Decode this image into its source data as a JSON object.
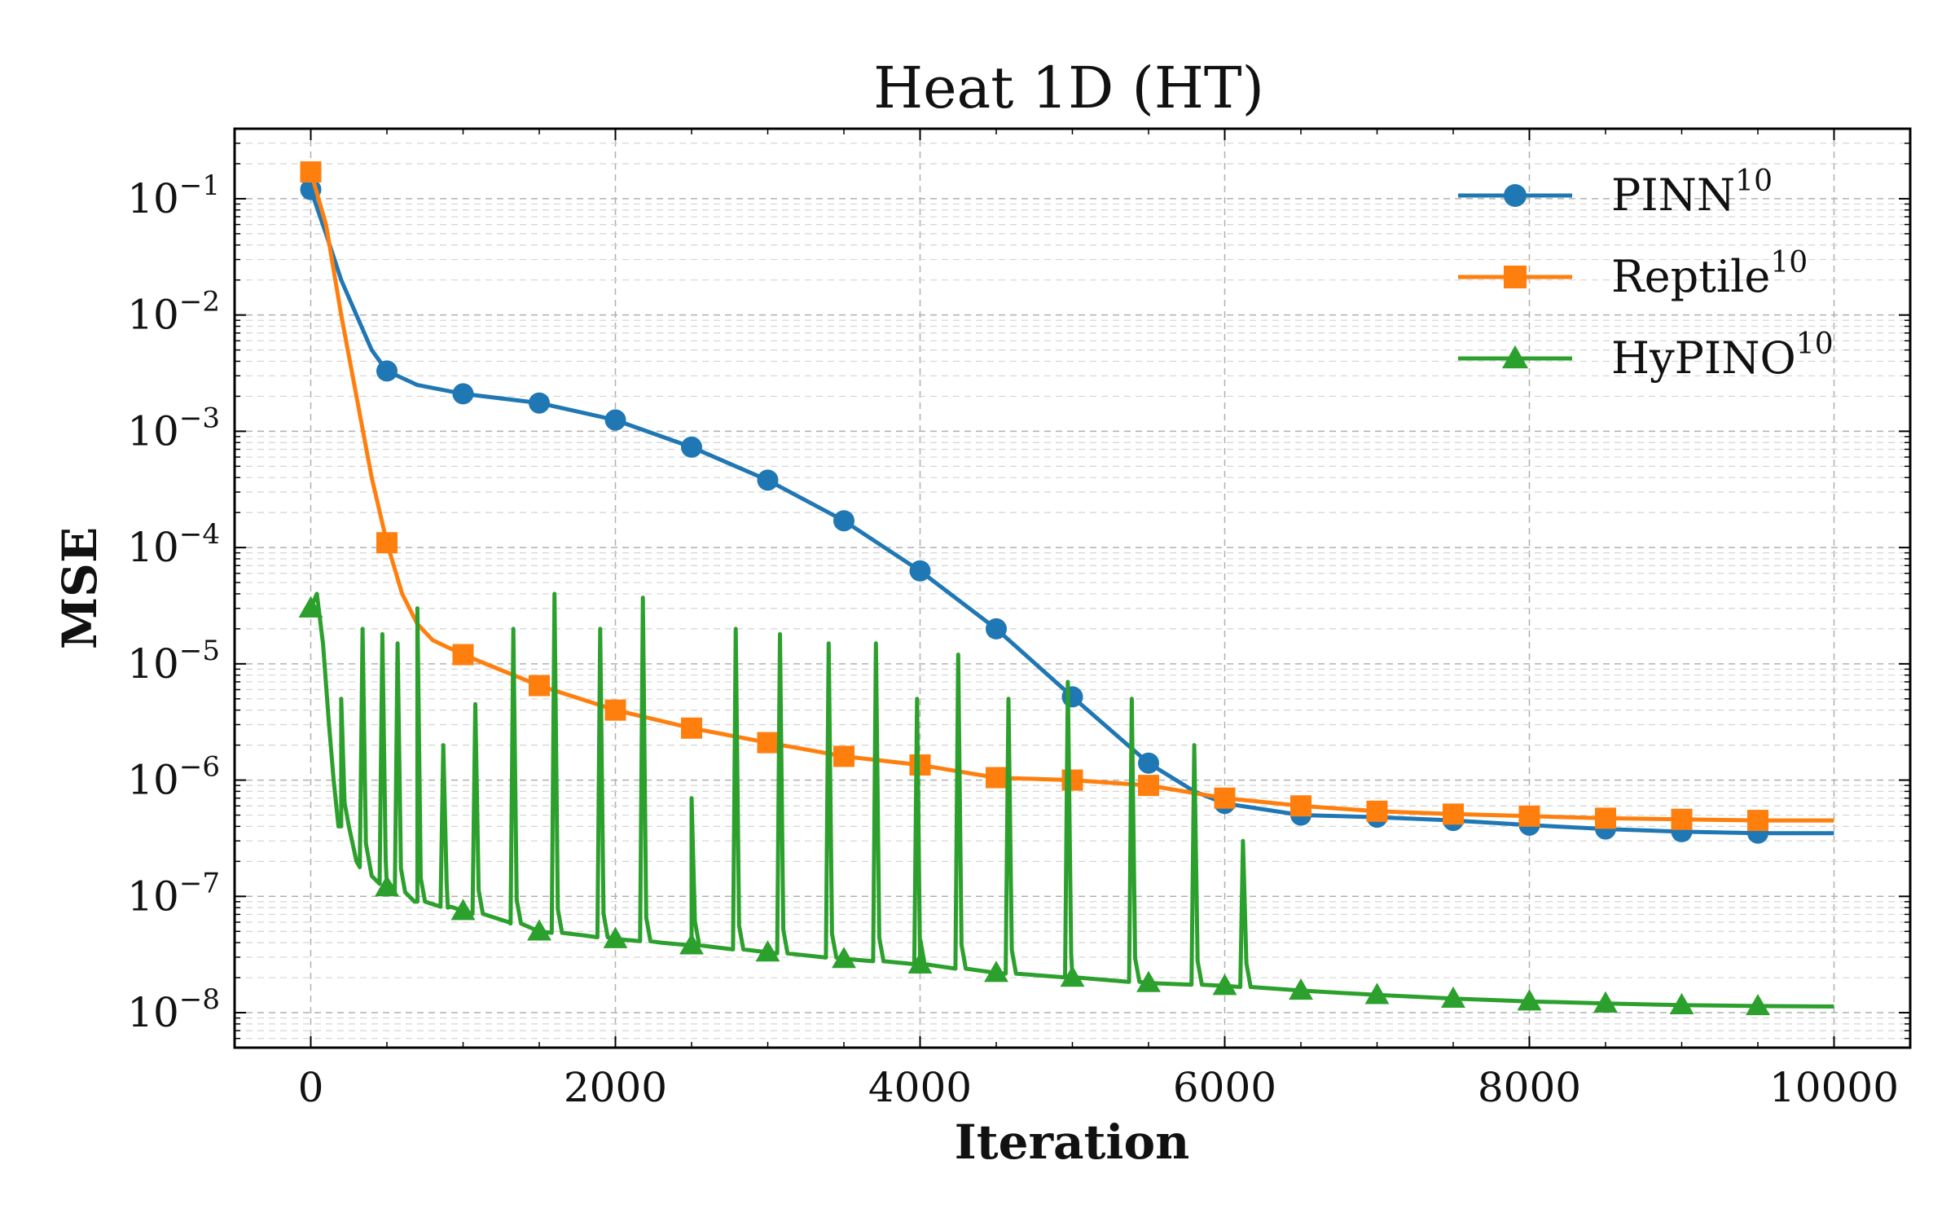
{
  "chart_data": {
    "type": "line",
    "title": "Heat 1D (HT)",
    "xlabel": "Iteration",
    "ylabel": "MSE",
    "y_scale": "log",
    "xlim": [
      -500,
      10500
    ],
    "ylim": [
      5e-09,
      0.4
    ],
    "x_ticks": [
      0,
      2000,
      4000,
      6000,
      8000,
      10000
    ],
    "x_tick_labels": [
      "0",
      "2000",
      "4000",
      "6000",
      "8000",
      "10000"
    ],
    "y_ticks": [
      1e-08,
      1e-07,
      1e-06,
      1e-05,
      0.0001,
      0.001,
      0.01,
      0.1
    ],
    "y_tick_labels": [
      {
        "base": "10",
        "exp": "−8"
      },
      {
        "base": "10",
        "exp": "−7"
      },
      {
        "base": "10",
        "exp": "−6"
      },
      {
        "base": "10",
        "exp": "−5"
      },
      {
        "base": "10",
        "exp": "−4"
      },
      {
        "base": "10",
        "exp": "−3"
      },
      {
        "base": "10",
        "exp": "−2"
      },
      {
        "base": "10",
        "exp": "−1"
      }
    ],
    "grid": true,
    "legend_position": "top-right",
    "series": [
      {
        "name": "PINN",
        "name_sup": "10",
        "color": "#1f77b4",
        "marker": "circle",
        "x": [
          0,
          100,
          200,
          300,
          400,
          500,
          700,
          1000,
          1500,
          2000,
          2500,
          3000,
          3500,
          4000,
          4500,
          5000,
          5500,
          5800,
          6000,
          6500,
          7000,
          7500,
          8000,
          8500,
          9000,
          9500,
          10000
        ],
        "y": [
          0.12,
          0.05,
          0.02,
          0.01,
          0.005,
          0.0033,
          0.0025,
          0.0021,
          0.00175,
          0.00125,
          0.00073,
          0.00038,
          0.00017,
          6.3e-05,
          2e-05,
          5.2e-06,
          1.4e-06,
          8e-07,
          6.3e-07,
          5e-07,
          4.8e-07,
          4.5e-07,
          4.1e-07,
          3.8e-07,
          3.6e-07,
          3.5e-07,
          3.5e-07
        ],
        "marker_x": [
          0,
          500,
          1000,
          1500,
          2000,
          2500,
          3000,
          3500,
          4000,
          4500,
          5000,
          5500,
          6000,
          6500,
          7000,
          7500,
          8000,
          8500,
          9000,
          9500
        ]
      },
      {
        "name": "Reptile",
        "name_sup": "10",
        "color": "#ff7f0e",
        "marker": "square",
        "x": [
          0,
          100,
          200,
          300,
          400,
          500,
          600,
          700,
          800,
          1000,
          1500,
          2000,
          2500,
          3000,
          3500,
          4000,
          4500,
          5000,
          5500,
          6000,
          6500,
          7000,
          7500,
          8000,
          8500,
          9000,
          9500,
          10000
        ],
        "y": [
          0.17,
          0.06,
          0.01,
          0.002,
          0.0004,
          0.00011,
          4e-05,
          2.2e-05,
          1.6e-05,
          1.2e-05,
          6.5e-06,
          4e-06,
          2.8e-06,
          2.1e-06,
          1.6e-06,
          1.35e-06,
          1.05e-06,
          1e-06,
          9e-07,
          7e-07,
          6e-07,
          5.4e-07,
          5.1e-07,
          4.9e-07,
          4.7e-07,
          4.6e-07,
          4.5e-07,
          4.5e-07
        ],
        "marker_x": [
          0,
          500,
          1000,
          1500,
          2000,
          2500,
          3000,
          3500,
          4000,
          4500,
          5000,
          5500,
          6000,
          6500,
          7000,
          7500,
          8000,
          8500,
          9000,
          9500
        ]
      },
      {
        "name": "HyPINO",
        "name_sup": "10",
        "color": "#2ca02c",
        "marker": "triangle",
        "x": [
          0,
          40,
          80,
          120,
          150,
          200,
          300,
          400,
          500,
          700,
          900,
          1000,
          1300,
          1500,
          1800,
          2000,
          2300,
          2500,
          3000,
          3500,
          4000,
          4500,
          5000,
          5500,
          6000,
          6500,
          7000,
          7500,
          8000,
          8500,
          9000,
          9500,
          10000
        ],
        "y": [
          3e-05,
          4e-05,
          1.5e-05,
          3e-06,
          1e-06,
          4e-07,
          2e-07,
          1.5e-07,
          1.2e-07,
          9e-08,
          8e-08,
          7.5e-08,
          6e-08,
          5e-08,
          4.6e-08,
          4.3e-08,
          4e-08,
          3.8e-08,
          3.3e-08,
          2.9e-08,
          2.6e-08,
          2.2e-08,
          2e-08,
          1.8e-08,
          1.7e-08,
          1.55e-08,
          1.42e-08,
          1.32e-08,
          1.25e-08,
          1.2e-08,
          1.16e-08,
          1.14e-08,
          1.13e-08
        ],
        "spikes": [
          {
            "x": 200,
            "y": 5e-06
          },
          {
            "x": 340,
            "y": 2e-05
          },
          {
            "x": 470,
            "y": 1.8e-05
          },
          {
            "x": 570,
            "y": 1.5e-05
          },
          {
            "x": 700,
            "y": 3e-05
          },
          {
            "x": 870,
            "y": 2e-06
          },
          {
            "x": 1080,
            "y": 4.5e-06
          },
          {
            "x": 1330,
            "y": 2e-05
          },
          {
            "x": 1600,
            "y": 4e-05
          },
          {
            "x": 1900,
            "y": 2e-05
          },
          {
            "x": 2180,
            "y": 3.7e-05
          },
          {
            "x": 2500,
            "y": 7e-07
          },
          {
            "x": 2790,
            "y": 2e-05
          },
          {
            "x": 3080,
            "y": 1.8e-05
          },
          {
            "x": 3400,
            "y": 1.5e-05
          },
          {
            "x": 3710,
            "y": 1.5e-05
          },
          {
            "x": 3980,
            "y": 5e-06
          },
          {
            "x": 4250,
            "y": 1.2e-05
          },
          {
            "x": 4580,
            "y": 5e-06
          },
          {
            "x": 4970,
            "y": 7e-06
          },
          {
            "x": 5390,
            "y": 5e-06
          },
          {
            "x": 5800,
            "y": 2e-06
          },
          {
            "x": 6120,
            "y": 3e-07
          }
        ],
        "marker_x": [
          0,
          500,
          1000,
          1500,
          2000,
          2500,
          3000,
          3500,
          4000,
          4500,
          5000,
          5500,
          6000,
          6500,
          7000,
          7500,
          8000,
          8500,
          9000,
          9500
        ]
      }
    ]
  }
}
